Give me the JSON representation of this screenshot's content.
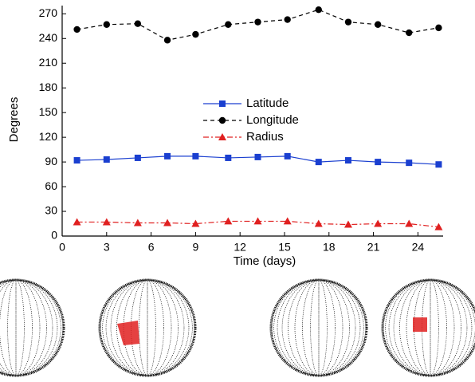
{
  "chart_data": {
    "type": "line",
    "xlabel": "Time (days)",
    "ylabel": "Degrees",
    "x": [
      1,
      3,
      5.1,
      7.1,
      9,
      11.2,
      13.2,
      15.2,
      17.3,
      19.3,
      21.3,
      23.4,
      25.4
    ],
    "series": [
      {
        "name": "Latitude",
        "color": "#1a3fd0",
        "marker": "square",
        "dash": "solid",
        "values": [
          92,
          93,
          95,
          97,
          97,
          95,
          96,
          97,
          90,
          92,
          90,
          89,
          87
        ]
      },
      {
        "name": "Longitude",
        "color": "#000000",
        "marker": "circle",
        "dash": "dash",
        "values": [
          251,
          257,
          258,
          238,
          245,
          257,
          260,
          263,
          275,
          260,
          257,
          247,
          253
        ]
      },
      {
        "name": "Radius",
        "color": "#e02020",
        "marker": "triangle",
        "dash": "dashdot",
        "values": [
          17,
          17,
          16,
          16,
          15,
          18,
          18,
          18,
          15,
          14,
          15,
          15,
          11
        ]
      }
    ],
    "xlim": [
      0,
      25.7
    ],
    "xticks": [
      0,
      3,
      6,
      9,
      12,
      15,
      18,
      21,
      24
    ],
    "ylim": [
      0,
      280
    ],
    "yticks": [
      0,
      30,
      60,
      90,
      120,
      150,
      180,
      210,
      240,
      270
    ],
    "legend": "center"
  }
}
